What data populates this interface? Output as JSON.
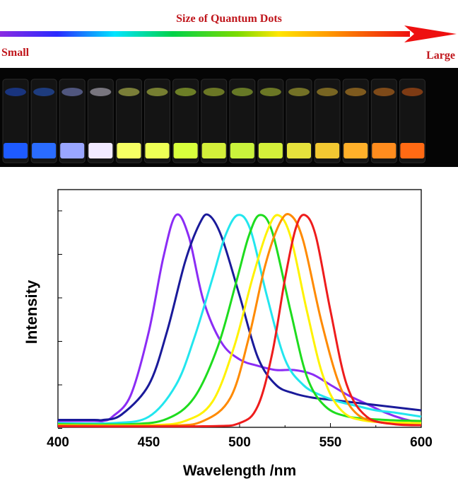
{
  "header": {
    "title": "Size of Quantum Dots",
    "small_label": "Small",
    "large_label": "Large"
  },
  "vials": {
    "count": 15,
    "colors": [
      "#1e5bff",
      "#2a6cff",
      "#9aa6ff",
      "#f2eaff",
      "#f7ff64",
      "#eeff55",
      "#d8ff3c",
      "#d4f03a",
      "#c9f23c",
      "#d4f03a",
      "#e6e23c",
      "#f2c832",
      "#ffb02a",
      "#ff8c1e",
      "#ff6a14"
    ]
  },
  "chart_data": {
    "type": "line",
    "xlabel": "Wavelength /nm",
    "ylabel": "Intensity",
    "xlim": [
      400,
      600
    ],
    "ylim": [
      0,
      1
    ],
    "xticks": [
      "400",
      "450",
      "500",
      "550",
      "600"
    ],
    "ytick_count": 6,
    "series": [
      {
        "color": "#8b2cf5",
        "peak": 465,
        "baseline": 0.03,
        "points": [
          [
            400,
            0.03
          ],
          [
            420,
            0.03
          ],
          [
            425,
            0.03
          ],
          [
            430,
            0.05
          ],
          [
            440,
            0.15
          ],
          [
            450,
            0.45
          ],
          [
            458,
            0.8
          ],
          [
            465,
            1.0
          ],
          [
            472,
            0.9
          ],
          [
            480,
            0.6
          ],
          [
            490,
            0.4
          ],
          [
            500,
            0.32
          ],
          [
            510,
            0.29
          ],
          [
            520,
            0.27
          ],
          [
            530,
            0.27
          ],
          [
            540,
            0.25
          ],
          [
            550,
            0.2
          ],
          [
            560,
            0.15
          ],
          [
            570,
            0.11
          ],
          [
            580,
            0.07
          ],
          [
            590,
            0.04
          ],
          [
            600,
            0.02
          ]
        ]
      },
      {
        "color": "#1a1a9a",
        "peak": 483,
        "baseline": 0.035,
        "points": [
          [
            400,
            0.035
          ],
          [
            420,
            0.035
          ],
          [
            425,
            0.035
          ],
          [
            435,
            0.06
          ],
          [
            450,
            0.2
          ],
          [
            460,
            0.45
          ],
          [
            470,
            0.78
          ],
          [
            478,
            0.96
          ],
          [
            483,
            1.0
          ],
          [
            490,
            0.9
          ],
          [
            500,
            0.62
          ],
          [
            510,
            0.33
          ],
          [
            520,
            0.2
          ],
          [
            530,
            0.16
          ],
          [
            540,
            0.14
          ],
          [
            550,
            0.13
          ],
          [
            560,
            0.12
          ],
          [
            570,
            0.11
          ],
          [
            580,
            0.1
          ],
          [
            590,
            0.09
          ],
          [
            600,
            0.08
          ]
        ]
      },
      {
        "color": "#22e6ee",
        "peak": 499,
        "baseline": 0.02,
        "points": [
          [
            400,
            0.02
          ],
          [
            430,
            0.02
          ],
          [
            450,
            0.05
          ],
          [
            465,
            0.2
          ],
          [
            475,
            0.42
          ],
          [
            485,
            0.7
          ],
          [
            492,
            0.9
          ],
          [
            499,
            1.0
          ],
          [
            506,
            0.93
          ],
          [
            515,
            0.62
          ],
          [
            525,
            0.32
          ],
          [
            535,
            0.2
          ],
          [
            545,
            0.15
          ],
          [
            555,
            0.12
          ],
          [
            565,
            0.1
          ],
          [
            575,
            0.08
          ],
          [
            585,
            0.07
          ],
          [
            600,
            0.05
          ]
        ]
      },
      {
        "color": "#1edc1e",
        "peak": 511,
        "baseline": 0.015,
        "points": [
          [
            400,
            0.015
          ],
          [
            440,
            0.015
          ],
          [
            460,
            0.04
          ],
          [
            475,
            0.14
          ],
          [
            488,
            0.38
          ],
          [
            498,
            0.68
          ],
          [
            505,
            0.9
          ],
          [
            511,
            1.0
          ],
          [
            518,
            0.92
          ],
          [
            528,
            0.55
          ],
          [
            537,
            0.24
          ],
          [
            547,
            0.1
          ],
          [
            560,
            0.05
          ],
          [
            580,
            0.035
          ],
          [
            600,
            0.03
          ]
        ]
      },
      {
        "color": "#fff200",
        "peak": 521,
        "baseline": 0.01,
        "points": [
          [
            400,
            0.01
          ],
          [
            450,
            0.01
          ],
          [
            470,
            0.03
          ],
          [
            485,
            0.12
          ],
          [
            497,
            0.38
          ],
          [
            507,
            0.7
          ],
          [
            515,
            0.92
          ],
          [
            521,
            1.0
          ],
          [
            528,
            0.9
          ],
          [
            537,
            0.55
          ],
          [
            546,
            0.24
          ],
          [
            556,
            0.08
          ],
          [
            570,
            0.03
          ],
          [
            600,
            0.02
          ]
        ]
      },
      {
        "color": "#ff8a00",
        "peak": 528,
        "baseline": 0.008,
        "points": [
          [
            400,
            0.008
          ],
          [
            460,
            0.008
          ],
          [
            480,
            0.03
          ],
          [
            495,
            0.14
          ],
          [
            505,
            0.42
          ],
          [
            514,
            0.76
          ],
          [
            522,
            0.96
          ],
          [
            528,
            1.0
          ],
          [
            535,
            0.88
          ],
          [
            545,
            0.5
          ],
          [
            555,
            0.2
          ],
          [
            565,
            0.06
          ],
          [
            580,
            0.02
          ],
          [
            600,
            0.01
          ]
        ]
      },
      {
        "color": "#ee1c1c",
        "peak": 536,
        "baseline": 0.005,
        "points": [
          [
            400,
            0.005
          ],
          [
            480,
            0.005
          ],
          [
            500,
            0.02
          ],
          [
            510,
            0.1
          ],
          [
            518,
            0.35
          ],
          [
            525,
            0.7
          ],
          [
            531,
            0.94
          ],
          [
            536,
            1.0
          ],
          [
            542,
            0.9
          ],
          [
            550,
            0.55
          ],
          [
            559,
            0.2
          ],
          [
            570,
            0.05
          ],
          [
            585,
            0.015
          ],
          [
            600,
            0.01
          ]
        ]
      }
    ]
  }
}
